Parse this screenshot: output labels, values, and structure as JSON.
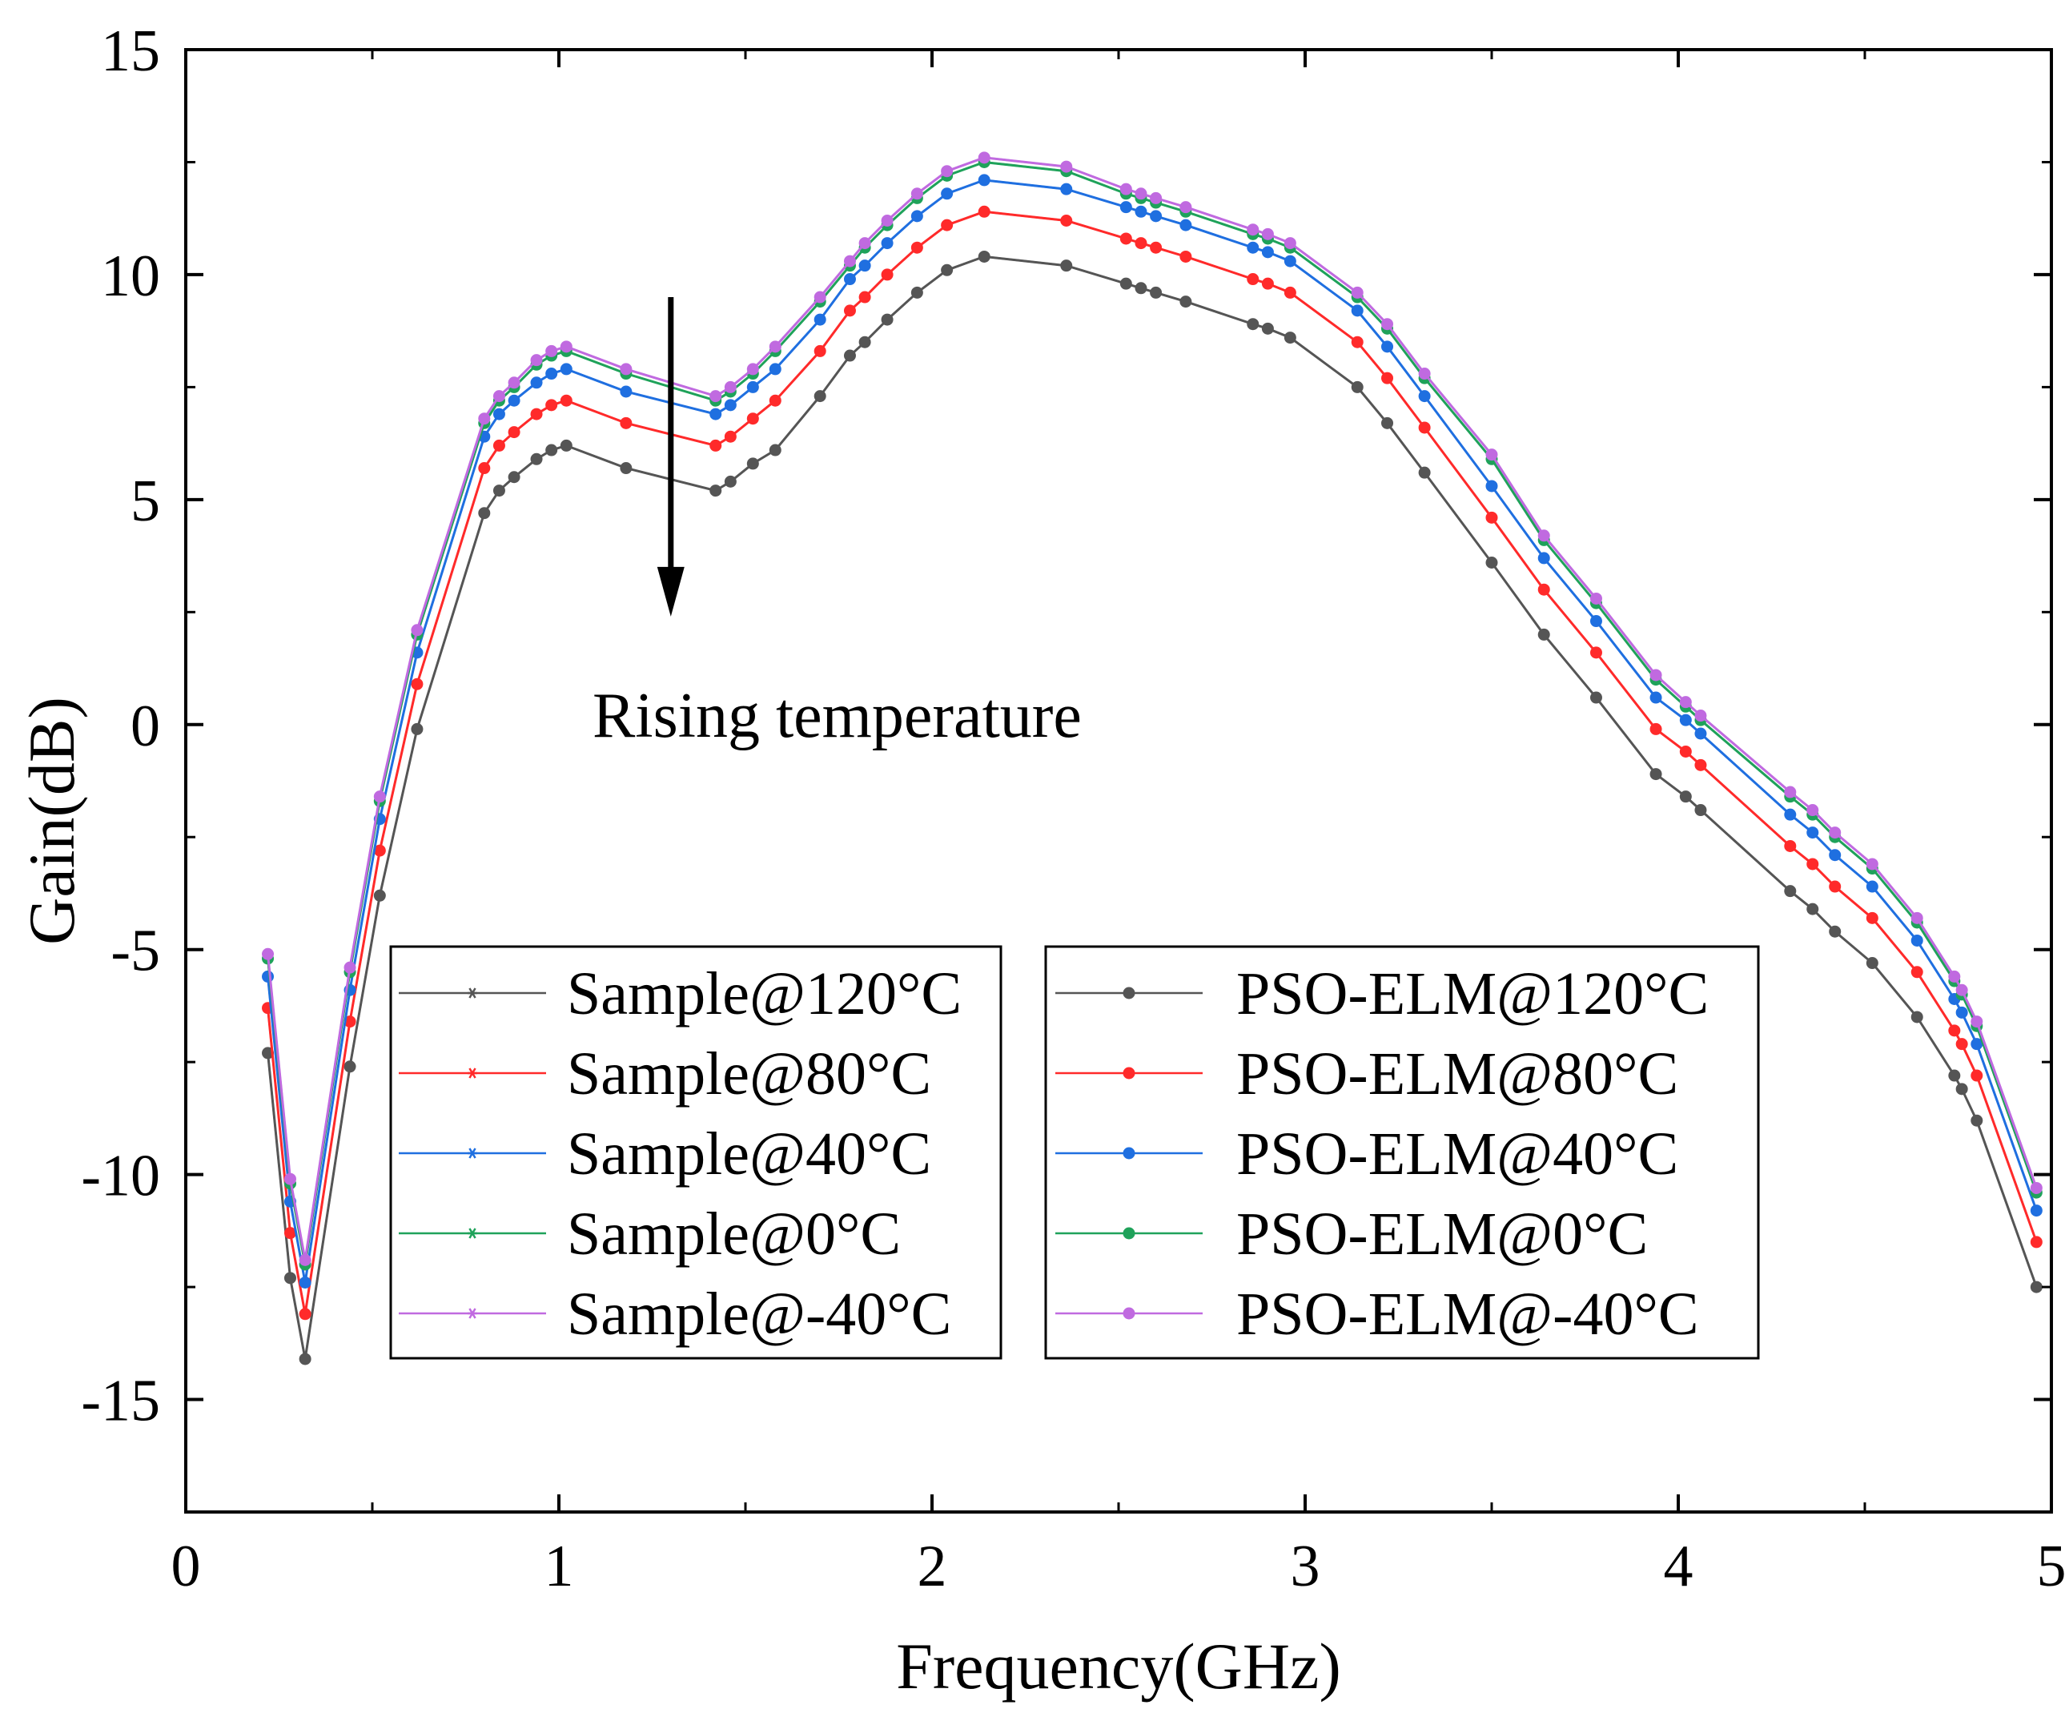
{
  "chart_data": {
    "type": "line",
    "title": "",
    "xlabel": "Frequency(GHz)",
    "ylabel": "Gain(dB)",
    "xlim": [
      0,
      5
    ],
    "ylim": [
      -17.5,
      15
    ],
    "xticks": [
      0,
      1,
      2,
      3,
      4,
      5
    ],
    "xtick_labels": [
      "0",
      "1",
      "2",
      "3",
      "4",
      "5"
    ],
    "yticks": [
      15,
      10,
      5,
      0,
      -5,
      -10,
      -15
    ],
    "ytick_labels": [
      "15",
      "10",
      "5",
      "0",
      "-5",
      "-10",
      "-15"
    ],
    "grid": false,
    "legend_position": "bottom-center",
    "annotation": "Rising temperature",
    "annotation_arrow": {
      "x": 1.3,
      "y_start": 9.5,
      "y_end": 2.4
    },
    "x": [
      0.22,
      0.28,
      0.32,
      0.44,
      0.52,
      0.62,
      0.8,
      0.84,
      0.88,
      0.94,
      0.98,
      1.02,
      1.18,
      1.42,
      1.46,
      1.52,
      1.58,
      1.7,
      1.78,
      1.82,
      1.88,
      1.96,
      2.04,
      2.14,
      2.36,
      2.52,
      2.56,
      2.6,
      2.68,
      2.86,
      2.9,
      2.96,
      3.14,
      3.22,
      3.32,
      3.5,
      3.64,
      3.78,
      3.94,
      4.02,
      4.06,
      4.3,
      4.36,
      4.42,
      4.52,
      4.64,
      4.74,
      4.76,
      4.8,
      4.96
    ],
    "series": [
      {
        "name": "Sample@120°C",
        "color": "#555555",
        "values": [
          -7.3,
          -12.3,
          -14.1,
          -7.6,
          -3.8,
          -0.1,
          4.7,
          5.2,
          5.5,
          5.9,
          6.1,
          6.2,
          5.7,
          5.2,
          5.4,
          5.8,
          6.1,
          7.3,
          8.2,
          8.5,
          9.0,
          9.6,
          10.1,
          10.4,
          10.2,
          9.8,
          9.7,
          9.6,
          9.4,
          8.9,
          8.8,
          8.6,
          7.5,
          6.7,
          5.6,
          3.6,
          2.0,
          0.6,
          -1.1,
          -1.6,
          -1.9,
          -3.7,
          -4.1,
          -4.6,
          -5.3,
          -6.5,
          -7.8,
          -8.1,
          -8.8,
          -12.5
        ]
      },
      {
        "name": "Sample@80°C",
        "color": "#ff2a2a",
        "values": [
          -6.3,
          -11.3,
          -13.1,
          -6.6,
          -2.8,
          0.9,
          5.7,
          6.2,
          6.5,
          6.9,
          7.1,
          7.2,
          6.7,
          6.2,
          6.4,
          6.8,
          7.2,
          8.3,
          9.2,
          9.5,
          10.0,
          10.6,
          11.1,
          11.4,
          11.2,
          10.8,
          10.7,
          10.6,
          10.4,
          9.9,
          9.8,
          9.6,
          8.5,
          7.7,
          6.6,
          4.6,
          3.0,
          1.6,
          -0.1,
          -0.6,
          -0.9,
          -2.7,
          -3.1,
          -3.6,
          -4.3,
          -5.5,
          -6.8,
          -7.1,
          -7.8,
          -11.5
        ]
      },
      {
        "name": "Sample@40°C",
        "color": "#1f6fe0",
        "values": [
          -5.6,
          -10.6,
          -12.4,
          -5.9,
          -2.1,
          1.6,
          6.4,
          6.9,
          7.2,
          7.6,
          7.8,
          7.9,
          7.4,
          6.9,
          7.1,
          7.5,
          7.9,
          9.0,
          9.9,
          10.2,
          10.7,
          11.3,
          11.8,
          12.1,
          11.9,
          11.5,
          11.4,
          11.3,
          11.1,
          10.6,
          10.5,
          10.3,
          9.2,
          8.4,
          7.3,
          5.3,
          3.7,
          2.3,
          0.6,
          0.1,
          -0.2,
          -2.0,
          -2.4,
          -2.9,
          -3.6,
          -4.8,
          -6.1,
          -6.4,
          -7.1,
          -10.8
        ]
      },
      {
        "name": "Sample@0°C",
        "color": "#1fa25a",
        "values": [
          -5.2,
          -10.2,
          -12.0,
          -5.5,
          -1.7,
          2.0,
          6.7,
          7.2,
          7.5,
          8.0,
          8.2,
          8.3,
          7.8,
          7.2,
          7.4,
          7.8,
          8.3,
          9.4,
          10.2,
          10.6,
          11.1,
          11.7,
          12.2,
          12.5,
          12.3,
          11.8,
          11.7,
          11.6,
          11.4,
          10.9,
          10.8,
          10.6,
          9.5,
          8.8,
          7.7,
          5.9,
          4.1,
          2.7,
          1.0,
          0.4,
          0.1,
          -1.6,
          -2.0,
          -2.5,
          -3.2,
          -4.4,
          -5.7,
          -6.0,
          -6.7,
          -10.4
        ]
      },
      {
        "name": "Sample@-40°C",
        "color": "#c06ae0",
        "values": [
          -5.1,
          -10.1,
          -11.9,
          -5.4,
          -1.6,
          2.1,
          6.8,
          7.3,
          7.6,
          8.1,
          8.3,
          8.4,
          7.9,
          7.3,
          7.5,
          7.9,
          8.4,
          9.5,
          10.3,
          10.7,
          11.2,
          11.8,
          12.3,
          12.6,
          12.4,
          11.9,
          11.8,
          11.7,
          11.5,
          11.0,
          10.9,
          10.7,
          9.6,
          8.9,
          7.8,
          6.0,
          4.2,
          2.8,
          1.1,
          0.5,
          0.2,
          -1.5,
          -1.9,
          -2.4,
          -3.1,
          -4.3,
          -5.6,
          -5.9,
          -6.6,
          -10.3
        ]
      },
      {
        "name": "PSO-ELM@120°C",
        "color": "#555555",
        "values": [
          -7.3,
          -12.3,
          -14.1,
          -7.6,
          -3.8,
          -0.1,
          4.7,
          5.2,
          5.5,
          5.9,
          6.1,
          6.2,
          5.7,
          5.2,
          5.4,
          5.8,
          6.1,
          7.3,
          8.2,
          8.5,
          9.0,
          9.6,
          10.1,
          10.4,
          10.2,
          9.8,
          9.7,
          9.6,
          9.4,
          8.9,
          8.8,
          8.6,
          7.5,
          6.7,
          5.6,
          3.6,
          2.0,
          0.6,
          -1.1,
          -1.6,
          -1.9,
          -3.7,
          -4.1,
          -4.6,
          -5.3,
          -6.5,
          -7.8,
          -8.1,
          -8.8,
          -12.5
        ]
      },
      {
        "name": "PSO-ELM@80°C",
        "color": "#ff2a2a",
        "values": [
          -6.3,
          -11.3,
          -13.1,
          -6.6,
          -2.8,
          0.9,
          5.7,
          6.2,
          6.5,
          6.9,
          7.1,
          7.2,
          6.7,
          6.2,
          6.4,
          6.8,
          7.2,
          8.3,
          9.2,
          9.5,
          10.0,
          10.6,
          11.1,
          11.4,
          11.2,
          10.8,
          10.7,
          10.6,
          10.4,
          9.9,
          9.8,
          9.6,
          8.5,
          7.7,
          6.6,
          4.6,
          3.0,
          1.6,
          -0.1,
          -0.6,
          -0.9,
          -2.7,
          -3.1,
          -3.6,
          -4.3,
          -5.5,
          -6.8,
          -7.1,
          -7.8,
          -11.5
        ]
      },
      {
        "name": "PSO-ELM@40°C",
        "color": "#1f6fe0",
        "values": [
          -5.6,
          -10.6,
          -12.4,
          -5.9,
          -2.1,
          1.6,
          6.4,
          6.9,
          7.2,
          7.6,
          7.8,
          7.9,
          7.4,
          6.9,
          7.1,
          7.5,
          7.9,
          9.0,
          9.9,
          10.2,
          10.7,
          11.3,
          11.8,
          12.1,
          11.9,
          11.5,
          11.4,
          11.3,
          11.1,
          10.6,
          10.5,
          10.3,
          9.2,
          8.4,
          7.3,
          5.3,
          3.7,
          2.3,
          0.6,
          0.1,
          -0.2,
          -2.0,
          -2.4,
          -2.9,
          -3.6,
          -4.8,
          -6.1,
          -6.4,
          -7.1,
          -10.8
        ]
      },
      {
        "name": "PSO-ELM@0°C",
        "color": "#1fa25a",
        "values": [
          -5.2,
          -10.2,
          -12.0,
          -5.5,
          -1.7,
          2.0,
          6.7,
          7.2,
          7.5,
          8.0,
          8.2,
          8.3,
          7.8,
          7.2,
          7.4,
          7.8,
          8.3,
          9.4,
          10.2,
          10.6,
          11.1,
          11.7,
          12.2,
          12.5,
          12.3,
          11.8,
          11.7,
          11.6,
          11.4,
          10.9,
          10.8,
          10.6,
          9.5,
          8.8,
          7.7,
          5.9,
          4.1,
          2.7,
          1.0,
          0.4,
          0.1,
          -1.6,
          -2.0,
          -2.5,
          -3.2,
          -4.4,
          -5.7,
          -6.0,
          -6.7,
          -10.4
        ]
      },
      {
        "name": "PSO-ELM@-40°C",
        "color": "#c06ae0",
        "values": [
          -5.1,
          -10.1,
          -11.9,
          -5.4,
          -1.6,
          2.1,
          6.8,
          7.3,
          7.6,
          8.1,
          8.3,
          8.4,
          7.9,
          7.3,
          7.5,
          7.9,
          8.4,
          9.5,
          10.3,
          10.7,
          11.2,
          11.8,
          12.3,
          12.6,
          12.4,
          11.9,
          11.8,
          11.7,
          11.5,
          11.0,
          10.9,
          10.7,
          9.6,
          8.9,
          7.8,
          6.0,
          4.2,
          2.8,
          1.1,
          0.5,
          0.2,
          -1.5,
          -1.9,
          -2.4,
          -3.1,
          -4.3,
          -5.6,
          -5.9,
          -6.6,
          -10.3
        ]
      }
    ]
  }
}
